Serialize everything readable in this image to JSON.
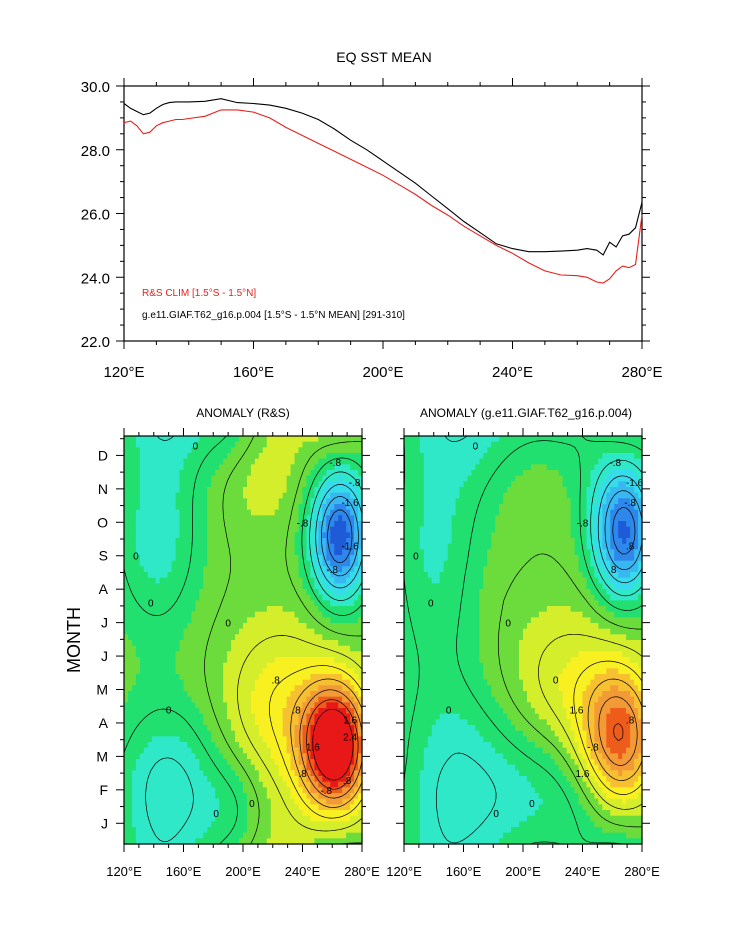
{
  "chart_data": [
    {
      "type": "line",
      "title": "EQ SST MEAN",
      "xlabel": "",
      "ylabel": "",
      "xlim": [
        120,
        280
      ],
      "ylim": [
        22,
        30
      ],
      "x_ticks": [
        120,
        160,
        200,
        240,
        280
      ],
      "x_tick_labels": [
        "120°E",
        "160°E",
        "200°E",
        "240°E",
        "280°E"
      ],
      "y_ticks": [
        22,
        24,
        26,
        28,
        30
      ],
      "y_tick_labels": [
        "22.0",
        "24.0",
        "26.0",
        "28.0",
        "30.0"
      ],
      "legend": [
        "R&S CLIM [1.5°S - 1.5°N]",
        "g.e11.GIAF.T62_g16.p.004 [1.5°S - 1.5°N MEAN] [291-310]"
      ],
      "legend_placement": "bottom-left",
      "series": [
        {
          "name": "R&S CLIM [1.5°S - 1.5°N]",
          "color": "#e8201c",
          "x": [
            120,
            122,
            124,
            126,
            128,
            130,
            132,
            134,
            136,
            138,
            140,
            145,
            150,
            155,
            160,
            165,
            170,
            175,
            180,
            185,
            190,
            195,
            200,
            205,
            210,
            215,
            220,
            225,
            230,
            235,
            240,
            245,
            250,
            255,
            260,
            263,
            266,
            268,
            270,
            272,
            274,
            276,
            278,
            280
          ],
          "y": [
            28.85,
            28.9,
            28.75,
            28.5,
            28.55,
            28.75,
            28.85,
            28.9,
            28.95,
            28.95,
            28.98,
            29.05,
            29.25,
            29.25,
            29.18,
            29.0,
            28.7,
            28.45,
            28.2,
            27.95,
            27.7,
            27.45,
            27.2,
            26.9,
            26.6,
            26.25,
            25.95,
            25.6,
            25.3,
            25.0,
            24.75,
            24.45,
            24.2,
            24.07,
            24.05,
            24.0,
            23.85,
            23.82,
            23.95,
            24.2,
            24.35,
            24.3,
            24.4,
            25.95
          ]
        },
        {
          "name": "g.e11.GIAF.T62_g16.p.004 [1.5°S - 1.5°N MEAN] [291-310]",
          "color": "#000000",
          "x": [
            120,
            122,
            124,
            126,
            128,
            130,
            132,
            134,
            136,
            138,
            140,
            145,
            150,
            155,
            160,
            165,
            170,
            175,
            180,
            185,
            190,
            195,
            200,
            205,
            210,
            215,
            220,
            225,
            230,
            235,
            240,
            245,
            250,
            255,
            260,
            263,
            266,
            268,
            270,
            272,
            274,
            276,
            278,
            280
          ],
          "y": [
            29.45,
            29.3,
            29.2,
            29.1,
            29.15,
            29.3,
            29.42,
            29.48,
            29.5,
            29.5,
            29.5,
            29.52,
            29.6,
            29.48,
            29.45,
            29.4,
            29.3,
            29.15,
            28.95,
            28.65,
            28.3,
            28.0,
            27.65,
            27.3,
            26.95,
            26.55,
            26.15,
            25.75,
            25.4,
            25.05,
            24.9,
            24.8,
            24.8,
            24.82,
            24.85,
            24.9,
            24.85,
            24.7,
            25.1,
            24.95,
            25.3,
            25.35,
            25.55,
            26.35
          ]
        }
      ]
    },
    {
      "type": "heatmap",
      "title": "ANOMALY (R&S)",
      "ylabel": "MONTH",
      "xlim": [
        120,
        280
      ],
      "x_ticks": [
        120,
        160,
        200,
        240,
        280
      ],
      "x_tick_labels": [
        "120°E",
        "160°E",
        "200°E",
        "240°E",
        "280°E"
      ],
      "y_tick_labels": [
        "J",
        "F",
        "M",
        "A",
        "M",
        "J",
        "J",
        "A",
        "S",
        "O",
        "N",
        "D"
      ],
      "contour_interval": 0.4,
      "contour_labels": [
        "0",
        "0",
        "0",
        "0",
        "0",
        "0",
        "0",
        ".8",
        "-.8",
        "-.8",
        "-.8",
        "-1.6",
        "-1.6",
        "-.8",
        ".8",
        ".8",
        "1.6",
        "1.6",
        "2.4",
        ".8",
        "-.8"
      ],
      "features": [
        {
          "kind": "min",
          "lon": 265,
          "month": 8.7,
          "value": -2.4,
          "sx": 14,
          "sy": 1.35
        },
        {
          "kind": "max",
          "lon": 262,
          "month": 2.4,
          "value": 3.0,
          "sx": 16,
          "sy": 1.3
        },
        {
          "kind": "max",
          "lon": 225,
          "month": 3.6,
          "value": 0.8,
          "sx": 28,
          "sy": 1.8
        },
        {
          "kind": "min",
          "lon": 150,
          "month": 1.2,
          "value": -0.9,
          "sx": 26,
          "sy": 1.8
        },
        {
          "kind": "min",
          "lon": 195,
          "month": 0.3,
          "value": -0.5,
          "sx": 16,
          "sy": 1.2
        },
        {
          "kind": "min",
          "lon": 142,
          "month": 8.5,
          "value": -0.7,
          "sx": 22,
          "sy": 2.0
        },
        {
          "kind": "max",
          "lon": 210,
          "month": 10.8,
          "value": 0.4,
          "sx": 22,
          "sy": 1.4
        }
      ],
      "colorscale": [
        "#1e5bd8",
        "#2e87ea",
        "#38b8f0",
        "#36dcec",
        "#2fe8c8",
        "#22e070",
        "#6cdc3c",
        "#d4ee2c",
        "#f8f020",
        "#f6c030",
        "#f29a36",
        "#ee5c1c",
        "#e81818"
      ]
    },
    {
      "type": "heatmap",
      "title": "ANOMALY (g.e11.GIAF.T62_g16.p.004)",
      "ylabel": "",
      "xlim": [
        120,
        280
      ],
      "x_ticks": [
        120,
        160,
        200,
        240,
        280
      ],
      "x_tick_labels": [
        "120°E",
        "160°E",
        "200°E",
        "240°E",
        "280°E"
      ],
      "y_tick_labels": [],
      "contour_interval": 0.4,
      "contour_labels": [
        "0",
        "0",
        "0",
        "0",
        "0",
        "0",
        "0",
        "0",
        "-.8",
        "-.8",
        "-1.6",
        "-.8",
        ".8",
        ".8",
        "1.6",
        "1.6",
        "-.8",
        ".8"
      ],
      "features": [
        {
          "kind": "min",
          "lon": 268,
          "month": 8.8,
          "value": -2.2,
          "sx": 15,
          "sy": 1.4
        },
        {
          "kind": "max",
          "lon": 265,
          "month": 2.6,
          "value": 2.0,
          "sx": 18,
          "sy": 1.5
        },
        {
          "kind": "max",
          "lon": 228,
          "month": 3.8,
          "value": 0.8,
          "sx": 30,
          "sy": 1.8
        },
        {
          "kind": "min",
          "lon": 215,
          "month": 0.8,
          "value": -0.9,
          "sx": 40,
          "sy": 2.2
        },
        {
          "kind": "min",
          "lon": 150,
          "month": 1.5,
          "value": -0.6,
          "sx": 26,
          "sy": 2.2
        },
        {
          "kind": "min",
          "lon": 140,
          "month": 8.0,
          "value": -0.6,
          "sx": 22,
          "sy": 2.5
        },
        {
          "kind": "max",
          "lon": 210,
          "month": 10.8,
          "value": 0.4,
          "sx": 22,
          "sy": 1.4
        }
      ],
      "colorscale": [
        "#1e5bd8",
        "#2e87ea",
        "#38b8f0",
        "#36dcec",
        "#2fe8c8",
        "#22e070",
        "#6cdc3c",
        "#d4ee2c",
        "#f8f020",
        "#f6c030",
        "#f29a36",
        "#ee5c1c",
        "#e81818"
      ]
    }
  ]
}
